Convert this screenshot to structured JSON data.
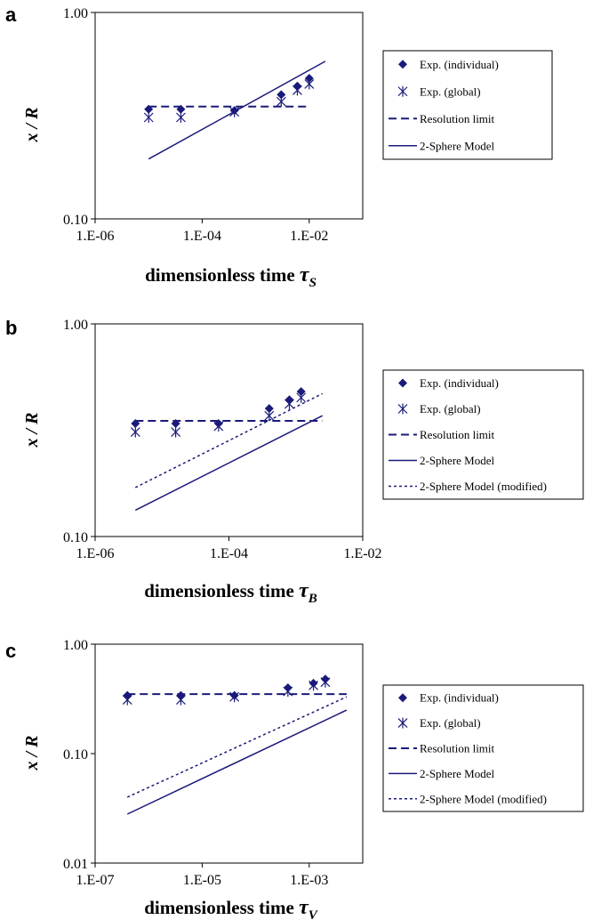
{
  "colors": {
    "series": "#1a1a7a",
    "frame": "#000000"
  },
  "chart_data": [
    {
      "panel_label": "a",
      "type": "scatter",
      "ylabel": "x / R",
      "xlabel": "dimensionless time",
      "xlabel_symbol": "τ",
      "xlabel_sub": "S",
      "x_scale": "log",
      "y_scale": "log",
      "xlim": [
        1e-06,
        0.1
      ],
      "ylim": [
        0.1,
        1.0
      ],
      "x_ticks": [
        {
          "value": 1e-06,
          "label": "1.E-06"
        },
        {
          "value": 0.0001,
          "label": "1.E-04"
        },
        {
          "value": 0.01,
          "label": "1.E-02"
        }
      ],
      "y_ticks": [
        {
          "value": 0.1,
          "label": "0.10"
        },
        {
          "value": 1.0,
          "label": "1.00"
        }
      ],
      "legend_position": "right",
      "series": [
        {
          "name": "Exp. (individual)",
          "kind": "diamond",
          "points": [
            {
              "x": 1e-05,
              "y": 0.34
            },
            {
              "x": 4e-05,
              "y": 0.34
            },
            {
              "x": 0.0004,
              "y": 0.335
            },
            {
              "x": 0.003,
              "y": 0.4
            },
            {
              "x": 0.006,
              "y": 0.44
            },
            {
              "x": 0.01,
              "y": 0.48
            }
          ]
        },
        {
          "name": "Exp. (global)",
          "kind": "asterisk",
          "points": [
            {
              "x": 1e-05,
              "y": 0.31
            },
            {
              "x": 4e-05,
              "y": 0.31
            },
            {
              "x": 0.0004,
              "y": 0.33
            },
            {
              "x": 0.003,
              "y": 0.37
            },
            {
              "x": 0.006,
              "y": 0.42
            },
            {
              "x": 0.01,
              "y": 0.45
            }
          ]
        },
        {
          "name": "Resolution limit",
          "kind": "dashed",
          "points": [
            {
              "x": 1e-05,
              "y": 0.35
            },
            {
              "x": 0.01,
              "y": 0.35
            }
          ]
        },
        {
          "name": "2-Sphere Model",
          "kind": "solid",
          "points": [
            {
              "x": 1e-05,
              "y": 0.195
            },
            {
              "x": 0.02,
              "y": 0.58
            }
          ]
        }
      ]
    },
    {
      "panel_label": "b",
      "type": "scatter",
      "ylabel": "x / R",
      "xlabel": "dimensionless time",
      "xlabel_symbol": "τ",
      "xlabel_sub": "B",
      "x_scale": "log",
      "y_scale": "log",
      "xlim": [
        1e-06,
        0.01
      ],
      "ylim": [
        0.1,
        1.0
      ],
      "x_ticks": [
        {
          "value": 1e-06,
          "label": "1.E-06"
        },
        {
          "value": 0.0001,
          "label": "1.E-04"
        },
        {
          "value": 0.01,
          "label": "1.E-02"
        }
      ],
      "y_ticks": [
        {
          "value": 0.1,
          "label": "0.10"
        },
        {
          "value": 1.0,
          "label": "1.00"
        }
      ],
      "legend_position": "right",
      "series": [
        {
          "name": "Exp. (individual)",
          "kind": "diamond",
          "points": [
            {
              "x": 4e-06,
              "y": 0.34
            },
            {
              "x": 1.6e-05,
              "y": 0.34
            },
            {
              "x": 7e-05,
              "y": 0.34
            },
            {
              "x": 0.0004,
              "y": 0.4
            },
            {
              "x": 0.0008,
              "y": 0.44
            },
            {
              "x": 0.0012,
              "y": 0.48
            }
          ]
        },
        {
          "name": "Exp. (global)",
          "kind": "asterisk",
          "points": [
            {
              "x": 4e-06,
              "y": 0.31
            },
            {
              "x": 1.6e-05,
              "y": 0.31
            },
            {
              "x": 7e-05,
              "y": 0.33
            },
            {
              "x": 0.0004,
              "y": 0.37
            },
            {
              "x": 0.0008,
              "y": 0.42
            },
            {
              "x": 0.0012,
              "y": 0.45
            }
          ]
        },
        {
          "name": "Resolution limit",
          "kind": "dashed",
          "points": [
            {
              "x": 4e-06,
              "y": 0.35
            },
            {
              "x": 0.0025,
              "y": 0.35
            }
          ]
        },
        {
          "name": "2-Sphere Model",
          "kind": "solid",
          "points": [
            {
              "x": 4e-06,
              "y": 0.133
            },
            {
              "x": 0.0025,
              "y": 0.37
            }
          ]
        },
        {
          "name": "2-Sphere Model (modified)",
          "kind": "dotted",
          "points": [
            {
              "x": 4e-06,
              "y": 0.17
            },
            {
              "x": 0.0025,
              "y": 0.47
            }
          ]
        }
      ]
    },
    {
      "panel_label": "c",
      "type": "scatter",
      "ylabel": "x / R",
      "xlabel": "dimensionless time",
      "xlabel_symbol": "τ",
      "xlabel_sub": "V",
      "x_scale": "log",
      "y_scale": "log",
      "xlim": [
        1e-07,
        0.01
      ],
      "ylim": [
        0.01,
        1.0
      ],
      "x_ticks": [
        {
          "value": 1e-07,
          "label": "1.E-07"
        },
        {
          "value": 1e-05,
          "label": "1.E-05"
        },
        {
          "value": 0.001,
          "label": "1.E-03"
        }
      ],
      "y_ticks": [
        {
          "value": 0.01,
          "label": "0.01"
        },
        {
          "value": 0.1,
          "label": "0.10"
        },
        {
          "value": 1.0,
          "label": "1.00"
        }
      ],
      "legend_position": "right",
      "series": [
        {
          "name": "Exp. (individual)",
          "kind": "diamond",
          "points": [
            {
              "x": 4e-07,
              "y": 0.34
            },
            {
              "x": 4e-06,
              "y": 0.34
            },
            {
              "x": 4e-05,
              "y": 0.34
            },
            {
              "x": 0.0004,
              "y": 0.4
            },
            {
              "x": 0.0012,
              "y": 0.44
            },
            {
              "x": 0.002,
              "y": 0.48
            }
          ]
        },
        {
          "name": "Exp. (global)",
          "kind": "asterisk",
          "points": [
            {
              "x": 4e-07,
              "y": 0.31
            },
            {
              "x": 4e-06,
              "y": 0.31
            },
            {
              "x": 4e-05,
              "y": 0.33
            },
            {
              "x": 0.0004,
              "y": 0.37
            },
            {
              "x": 0.0012,
              "y": 0.42
            },
            {
              "x": 0.002,
              "y": 0.45
            }
          ]
        },
        {
          "name": "Resolution limit",
          "kind": "dashed",
          "points": [
            {
              "x": 4e-07,
              "y": 0.35
            },
            {
              "x": 0.005,
              "y": 0.35
            }
          ]
        },
        {
          "name": "2-Sphere Model",
          "kind": "solid",
          "points": [
            {
              "x": 4e-07,
              "y": 0.028
            },
            {
              "x": 0.005,
              "y": 0.25
            }
          ]
        },
        {
          "name": "2-Sphere Model (modified)",
          "kind": "dotted",
          "points": [
            {
              "x": 4e-07,
              "y": 0.04
            },
            {
              "x": 0.005,
              "y": 0.33
            }
          ]
        }
      ]
    }
  ]
}
